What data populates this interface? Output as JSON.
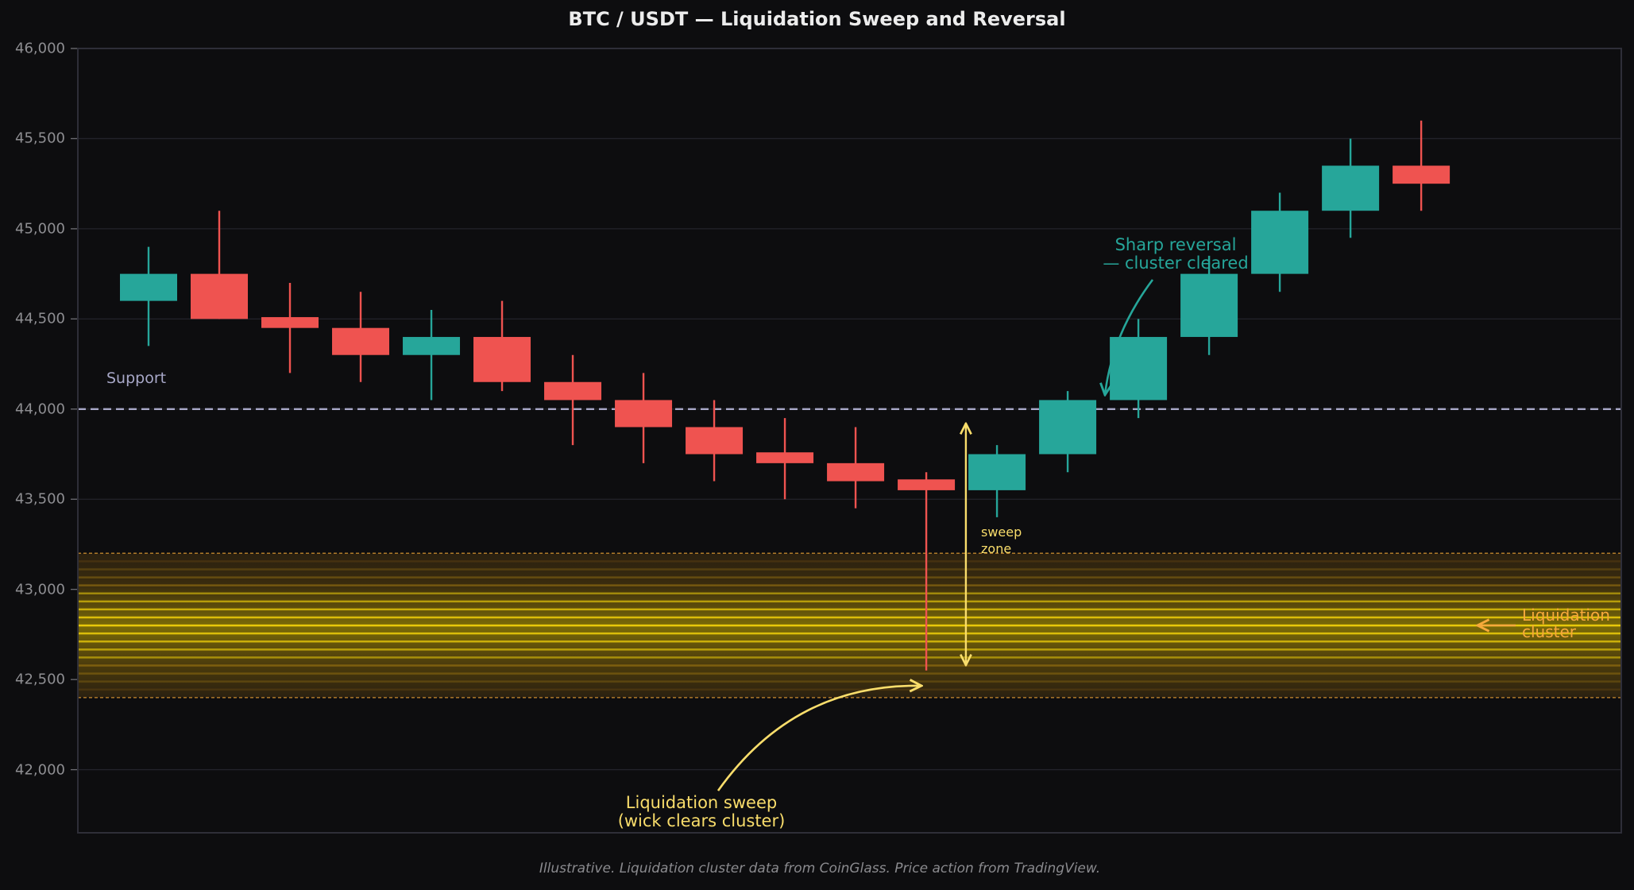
{
  "chart_data": {
    "type": "candlestick",
    "title": "BTC / USDT — Liquidation Sweep and Reversal",
    "xlabel": "",
    "ylabel": "",
    "ylim": [
      41650,
      46000
    ],
    "xlim": [
      -1.0,
      20.83
    ],
    "grid": true,
    "yticks": [
      42000,
      42500,
      43000,
      43500,
      44000,
      44500,
      45000,
      45500,
      46000
    ],
    "ytick_labels": [
      "42,000",
      "42,500",
      "43,000",
      "43,500",
      "44,000",
      "44,500",
      "45,000",
      "45,500",
      "46,000"
    ],
    "candles": [
      {
        "i": 0,
        "open": 44600,
        "high": 44900,
        "low": 44350,
        "close": 44750
      },
      {
        "i": 1,
        "open": 44750,
        "high": 45100,
        "low": 44500,
        "close": 44500
      },
      {
        "i": 2,
        "open": 44510,
        "high": 44700,
        "low": 44200,
        "close": 44450
      },
      {
        "i": 3,
        "open": 44450,
        "high": 44650,
        "low": 44150,
        "close": 44300
      },
      {
        "i": 4,
        "open": 44300,
        "high": 44550,
        "low": 44050,
        "close": 44400
      },
      {
        "i": 5,
        "open": 44400,
        "high": 44600,
        "low": 44100,
        "close": 44150
      },
      {
        "i": 6,
        "open": 44150,
        "high": 44300,
        "low": 43800,
        "close": 44050
      },
      {
        "i": 7,
        "open": 44050,
        "high": 44200,
        "low": 43700,
        "close": 43900
      },
      {
        "i": 8,
        "open": 43900,
        "high": 44050,
        "low": 43600,
        "close": 43750
      },
      {
        "i": 9,
        "open": 43760,
        "high": 43950,
        "low": 43500,
        "close": 43700
      },
      {
        "i": 10,
        "open": 43700,
        "high": 43900,
        "low": 43450,
        "close": 43600
      },
      {
        "i": 11,
        "open": 43610,
        "high": 43650,
        "low": 42550,
        "close": 43550
      },
      {
        "i": 12,
        "open": 43550,
        "high": 43800,
        "low": 43400,
        "close": 43750
      },
      {
        "i": 13,
        "open": 43750,
        "high": 44100,
        "low": 43650,
        "close": 44050
      },
      {
        "i": 14,
        "open": 44050,
        "high": 44500,
        "low": 43950,
        "close": 44400
      },
      {
        "i": 15,
        "open": 44400,
        "high": 44850,
        "low": 44300,
        "close": 44750
      },
      {
        "i": 16,
        "open": 44750,
        "high": 45200,
        "low": 44650,
        "close": 45100
      },
      {
        "i": 17,
        "open": 45100,
        "high": 45500,
        "low": 44950,
        "close": 45350
      },
      {
        "i": 18,
        "open": 45350,
        "high": 45600,
        "low": 45100,
        "close": 45250
      }
    ],
    "support_level": 44000,
    "liquidation_cluster": {
      "low": 42400,
      "high": 43200,
      "peak": 42800
    },
    "sweep_zone_arrow": {
      "x": 11.56,
      "from": 43920,
      "to": 42580
    },
    "annotations": [
      {
        "id": "support",
        "text": "Support"
      },
      {
        "id": "sweep",
        "text": "Liquidation sweep\n(wick clears cluster)",
        "arrow_to_index": 11,
        "arrow_to_price": 42480
      },
      {
        "id": "reversal",
        "text": "Sharp reversal\n— cluster cleared",
        "arrow_to_index": 13.7,
        "arrow_to_price": 44060
      },
      {
        "id": "sweep-zone",
        "text": "sweep\nzone"
      },
      {
        "id": "cluster",
        "text": "Liquidation\ncluster"
      }
    ],
    "colors": {
      "bull": "#26a69a",
      "bear": "#ef5350",
      "support": "#a8a8c8",
      "cluster_text": "#f7a93b",
      "sweep_text": "#f9dd6b",
      "background": "#0d0d0f"
    }
  },
  "header": {
    "title": "BTC / USDT — Liquidation Sweep and Reversal"
  },
  "annotations": {
    "support": "Support",
    "sweep": "Liquidation sweep\n(wick clears cluster)",
    "reversal": "Sharp reversal\n— cluster cleared",
    "sweep_zone": "sweep\nzone",
    "cluster": "Liquidation\ncluster"
  },
  "footer": {
    "note": "Illustrative. Liquidation cluster data from CoinGlass. Price action from TradingView."
  }
}
